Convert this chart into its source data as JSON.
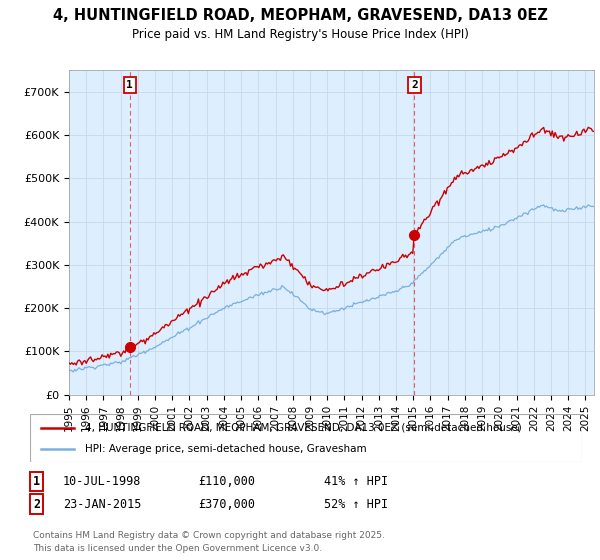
{
  "title_line1": "4, HUNTINGFIELD ROAD, MEOPHAM, GRAVESEND, DA13 0EZ",
  "title_line2": "Price paid vs. HM Land Registry's House Price Index (HPI)",
  "ylim": [
    0,
    750000
  ],
  "yticks": [
    0,
    100000,
    200000,
    300000,
    400000,
    500000,
    600000,
    700000
  ],
  "ytick_labels": [
    "£0",
    "£100K",
    "£200K",
    "£300K",
    "£400K",
    "£500K",
    "£600K",
    "£700K"
  ],
  "xlim_start": 1995.0,
  "xlim_end": 2025.5,
  "property_color": "#cc0000",
  "hpi_color": "#7aafe0",
  "plot_bg_color": "#ddeeff",
  "legend_label1": "4, HUNTINGFIELD ROAD, MEOPHAM, GRAVESEND, DA13 0EZ (semi-detached house)",
  "legend_label2": "HPI: Average price, semi-detached house, Gravesham",
  "sale1_x": 1998.53,
  "sale1_y": 110000,
  "sale2_x": 2015.07,
  "sale2_y": 370000,
  "footer_line1": "Contains HM Land Registry data © Crown copyright and database right 2025.",
  "footer_line2": "This data is licensed under the Open Government Licence v3.0.",
  "grid_color": "#c8d8e8",
  "bg_color": "#ffffff",
  "vline_color": "#dd4444",
  "vline1_x": 1998.53,
  "vline2_x": 2015.07
}
